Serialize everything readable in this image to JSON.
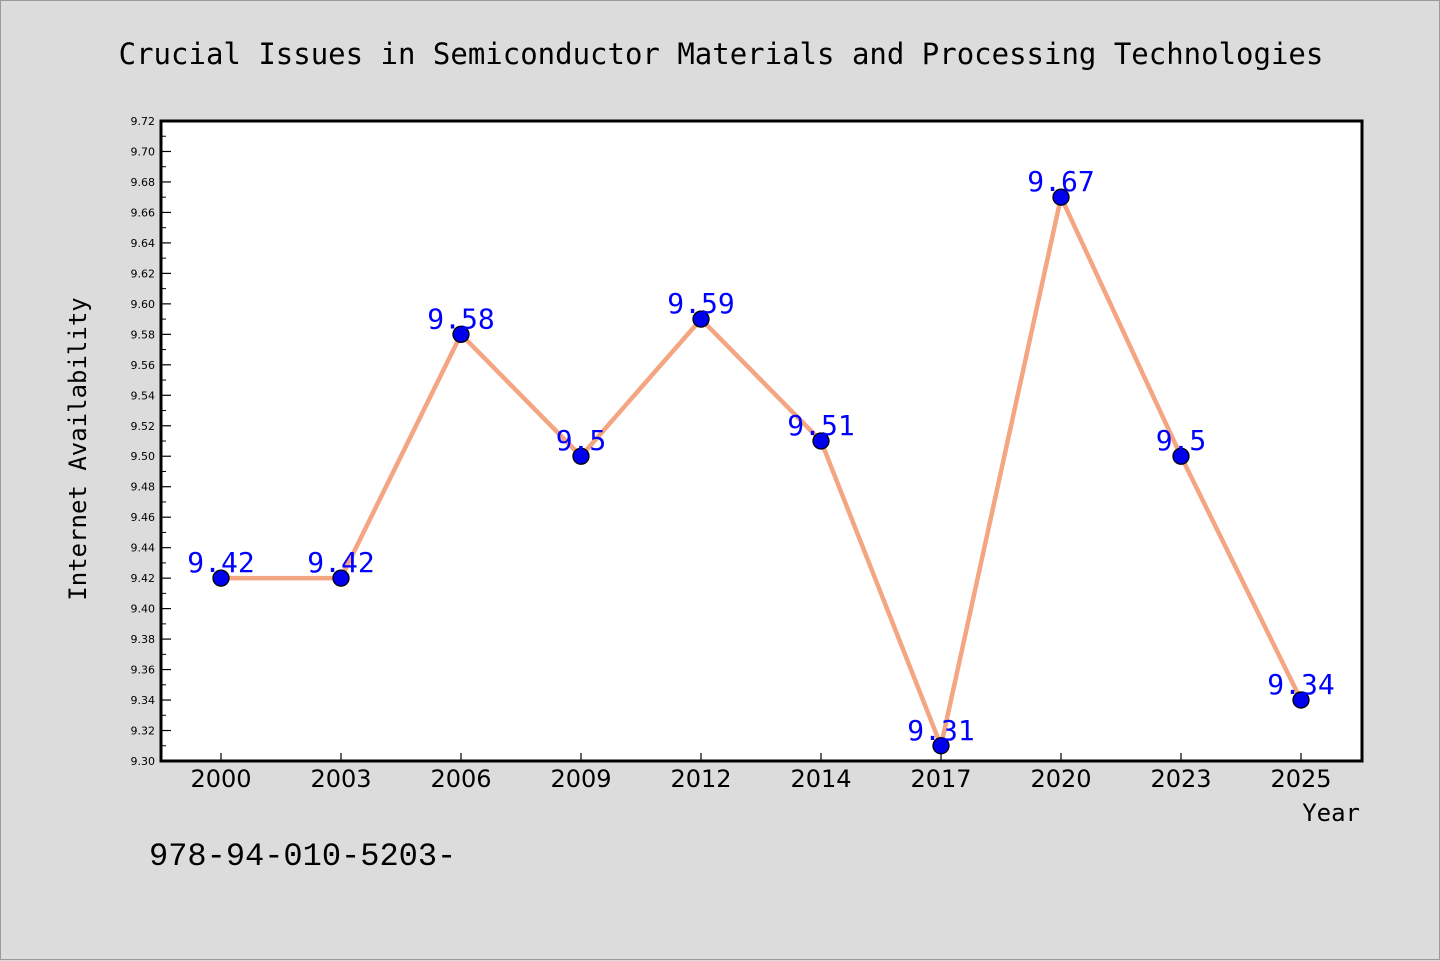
{
  "chart_data": {
    "type": "line",
    "title": "Crucial Issues in Semiconductor Materials and Processing Technologies",
    "xlabel": "Year",
    "ylabel": "Internet Availability",
    "categories": [
      "2000",
      "2003",
      "2006",
      "2009",
      "2012",
      "2014",
      "2017",
      "2020",
      "2023",
      "2025"
    ],
    "series": [
      {
        "values": [
          9.42,
          9.42,
          9.58,
          9.5,
          9.59,
          9.51,
          9.31,
          9.67,
          9.5,
          9.34
        ],
        "data_labels": [
          "9.42",
          "9.42",
          "9.58",
          "9.5",
          "9.59",
          "9.51",
          "9.31",
          "9.67",
          "9.5",
          "9.34"
        ]
      }
    ],
    "ylim": [
      9.3,
      9.72
    ],
    "yticks": [
      "9.30",
      "9.32",
      "9.34",
      "9.36",
      "9.38",
      "9.40",
      "9.42",
      "9.44",
      "9.46",
      "9.48",
      "9.50",
      "9.52",
      "9.54",
      "9.56",
      "9.58",
      "9.60",
      "9.62",
      "9.64",
      "9.66",
      "9.68",
      "9.70",
      "9.72"
    ],
    "grid": false,
    "legend": "none",
    "colors": {
      "line": "#f4a582",
      "marker": "#0000ee",
      "label": "#0000ff",
      "background": "#dcdcdc",
      "plot_background": "#ffffff"
    }
  },
  "annotation": "978-94-010-5203-"
}
